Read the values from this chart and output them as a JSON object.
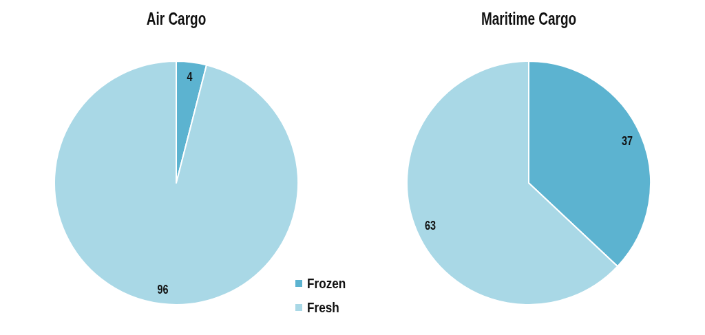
{
  "chart_data": [
    {
      "type": "pie",
      "title": "Air Cargo",
      "categories": [
        "Frozen",
        "Fresh"
      ],
      "values": [
        4,
        96
      ],
      "colors": [
        "#5cb3d0",
        "#a9d8e6"
      ],
      "data_labels": true,
      "legend": "bottom right"
    },
    {
      "type": "pie",
      "title": "Maritime Cargo",
      "categories": [
        null,
        null
      ],
      "values": [
        37,
        63
      ],
      "colors": [
        "#5cb3d0",
        "#a9d8e6"
      ],
      "data_labels": true
    }
  ]
}
